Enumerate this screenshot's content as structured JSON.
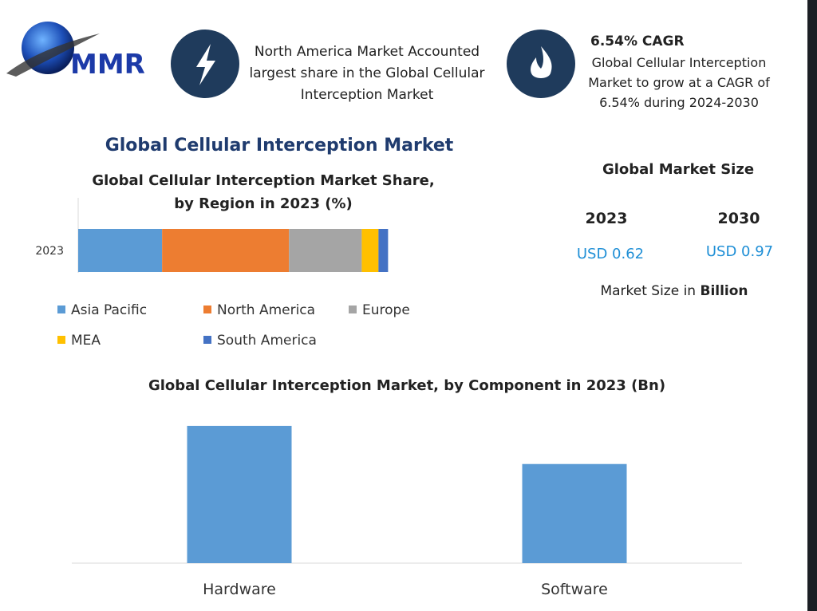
{
  "header": {
    "logo": "MMR",
    "highlight_1": "North America Market Accounted largest share in the Global Cellular Interception Market",
    "highlight_2_title": "6.54% CAGR",
    "highlight_2": "Global Cellular Interception Market to grow at a CAGR of 6.54% during 2024-2030"
  },
  "title": "Global Cellular Interception Market",
  "market_size": {
    "title": "Global Market Size",
    "years": [
      "2023",
      "2030"
    ],
    "values": [
      "USD 0.62",
      "USD 0.97"
    ],
    "note": "Market Size in",
    "note_bold": "Billion"
  },
  "chart_data": [
    {
      "type": "bar",
      "orientation": "horizontal",
      "stacked": true,
      "title": "Global Cellular Interception Market Share, by Region in 2023 (%)",
      "categories": [
        "2023"
      ],
      "series": [
        {
          "name": "Asia Pacific",
          "color": "#5b9bd5",
          "values": [
            27.1
          ]
        },
        {
          "name": "North America",
          "color": "#ed7d31",
          "values": [
            41.0
          ]
        },
        {
          "name": "Europe",
          "color": "#a5a5a5",
          "values": [
            23.5
          ]
        },
        {
          "name": "MEA",
          "color": "#ffc000",
          "values": [
            5.4
          ]
        },
        {
          "name": "South America",
          "color": "#4472c4",
          "values": [
            3.1
          ]
        }
      ]
    },
    {
      "type": "bar",
      "orientation": "vertical",
      "title": "Global Cellular Interception Market, by Component  in 2023 (Bn)",
      "categories": [
        "Hardware",
        "Software"
      ],
      "values": [
        0.36,
        0.26
      ],
      "color": "#5b9bd5"
    }
  ]
}
